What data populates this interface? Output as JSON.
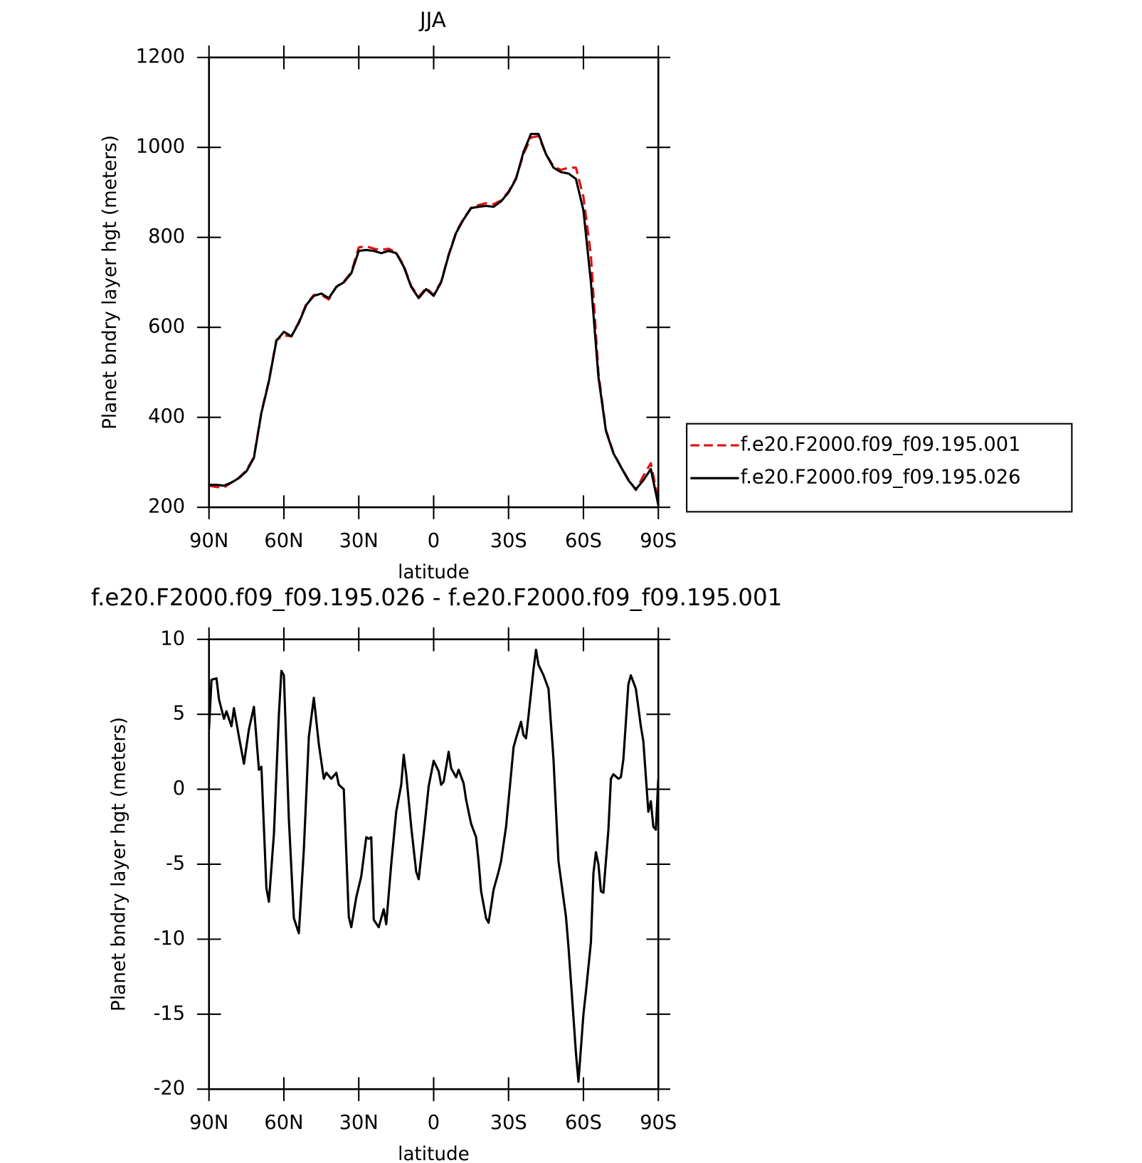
{
  "chart_data": [
    {
      "type": "line",
      "title": "JJA",
      "xlabel": "latitude",
      "ylabel": "Planet bndry layer hgt (meters)",
      "xlim": [
        90,
        -90
      ],
      "xticks": [
        {
          "value": 90,
          "label": "90N"
        },
        {
          "value": 60,
          "label": "60N"
        },
        {
          "value": 30,
          "label": "30N"
        },
        0,
        {
          "value": -30,
          "label": "30S"
        },
        {
          "value": -60,
          "label": "60S"
        },
        {
          "value": -90,
          "label": "90S"
        }
      ],
      "ylim": [
        200,
        1200
      ],
      "yticks": [
        200,
        400,
        600,
        800,
        1000,
        1200
      ],
      "legend": "right",
      "x": [
        90,
        87,
        84,
        81,
        78,
        75,
        72,
        69,
        66,
        63,
        60,
        57,
        54,
        51,
        48,
        45,
        42,
        39,
        36,
        33,
        30,
        27,
        24,
        21,
        18,
        15,
        12,
        9,
        6,
        3,
        0,
        -3,
        -6,
        -9,
        -12,
        -15,
        -18,
        -21,
        -24,
        -27,
        -30,
        -33,
        -36,
        -39,
        -42,
        -45,
        -48,
        -51,
        -54,
        -57,
        -60,
        -63,
        -66,
        -69,
        -72,
        -75,
        -78,
        -81,
        -84,
        -87,
        -90
      ],
      "series": [
        {
          "name": "f.e20.F2000.f09_f09.195.001",
          "color": "#e01010",
          "dashed": true,
          "values": [
            248,
            245,
            244,
            255,
            266,
            282,
            312,
            412,
            482,
            572,
            582,
            580,
            612,
            652,
            672,
            672,
            662,
            690,
            702,
            722,
            778,
            780,
            775,
            772,
            775,
            766,
            738,
            692,
            668,
            688,
            672,
            702,
            762,
            812,
            842,
            866,
            872,
            876,
            874,
            882,
            902,
            932,
            985,
            1022,
            1025,
            985,
            958,
            950,
            955,
            955,
            890,
            760,
            500,
            372,
            322,
            290,
            262,
            238,
            270,
            298,
            215
          ]
        },
        {
          "name": "f.e20.F2000.f09_f09.195.026",
          "color": "#000000",
          "dashed": false,
          "values": [
            250,
            250,
            248,
            255,
            265,
            280,
            310,
            410,
            480,
            570,
            590,
            580,
            610,
            650,
            670,
            675,
            665,
            690,
            700,
            720,
            770,
            772,
            770,
            765,
            770,
            765,
            735,
            690,
            665,
            685,
            670,
            700,
            760,
            810,
            840,
            865,
            868,
            870,
            868,
            880,
            900,
            930,
            990,
            1030,
            1030,
            985,
            955,
            945,
            942,
            930,
            860,
            700,
            490,
            370,
            320,
            290,
            260,
            240,
            260,
            285,
            205
          ]
        }
      ]
    },
    {
      "type": "line",
      "title": "f.e20.F2000.f09_f09.195.026 - f.e20.F2000.f09_f09.195.001",
      "xlabel": "latitude",
      "ylabel": "Planet bndry layer hgt (meters)",
      "xlim": [
        90,
        -90
      ],
      "xticks": [
        {
          "value": 90,
          "label": "90N"
        },
        {
          "value": 60,
          "label": "60N"
        },
        {
          "value": 30,
          "label": "30N"
        },
        0,
        {
          "value": -30,
          "label": "30S"
        },
        {
          "value": -60,
          "label": "60S"
        },
        {
          "value": -90,
          "label": "90S"
        }
      ],
      "ylim": [
        -20,
        10
      ],
      "yticks": [
        -20,
        -15,
        -10,
        -5,
        0,
        5,
        10
      ],
      "x": [
        90,
        89,
        87,
        86,
        84,
        83,
        81,
        80,
        78,
        76,
        74,
        72,
        70,
        69,
        67,
        66,
        64,
        62,
        61,
        60,
        58,
        56,
        54,
        52,
        50,
        48,
        46,
        44,
        43,
        41,
        39,
        38,
        36,
        34,
        33,
        31,
        29,
        27,
        26,
        25,
        24,
        22,
        20,
        19,
        17,
        15,
        13,
        12,
        11,
        9,
        7,
        6,
        4,
        2,
        0,
        -2,
        -3,
        -4,
        -6,
        -7,
        -9,
        -10,
        -12,
        -13,
        -15,
        -17,
        -18,
        -19,
        -21,
        -22,
        -24,
        -26,
        -27,
        -29,
        -31,
        -32,
        -33,
        -35,
        -36,
        -37,
        -38,
        -40,
        -41,
        -42,
        -44,
        -46,
        -48,
        -50,
        -53,
        -54,
        -56,
        -57,
        -58,
        -60,
        -61,
        -63,
        -64,
        -65,
        -66,
        -67,
        -68,
        -70,
        -71,
        -72,
        -74,
        -75,
        -76,
        -78,
        -79,
        -81,
        -83,
        -84,
        -86,
        -87,
        -88,
        -89,
        -90
      ],
      "series": [
        {
          "color": "#000000",
          "dashed": false,
          "values": [
            4,
            7.3,
            7.4,
            6,
            4.7,
            5.2,
            4.2,
            5.4,
            3.5,
            1.7,
            4,
            5.5,
            1.3,
            1.5,
            -6.6,
            -7.5,
            -3,
            5,
            7.9,
            7.6,
            -2,
            -8.6,
            -9.6,
            -4,
            3.5,
            6.1,
            3,
            0.7,
            1.1,
            0.7,
            1.1,
            0.3,
            0,
            -8.5,
            -9.2,
            -7.2,
            -5.8,
            -3.2,
            -3.3,
            -3.2,
            -8.7,
            -9.2,
            -8,
            -9,
            -5,
            -1.5,
            0.3,
            2.3,
            1,
            -2.5,
            -5.5,
            -6,
            -3,
            0.2,
            1.9,
            1.2,
            0.3,
            0.5,
            2.5,
            1.4,
            0.8,
            1.3,
            0.4,
            -0.7,
            -2.3,
            -3.2,
            -4.8,
            -6.8,
            -8.6,
            -8.9,
            -6.7,
            -5.5,
            -4.8,
            -2.5,
            1,
            2.8,
            3.4,
            4.5,
            3.6,
            3.4,
            4.9,
            8,
            9.3,
            8.3,
            7.6,
            6.7,
            2,
            -4.8,
            -8.5,
            -10.5,
            -15.2,
            -17.6,
            -19.5,
            -15,
            -13.5,
            -10.2,
            -5.6,
            -4.2,
            -5,
            -6.8,
            -6.9,
            -2.7,
            0.7,
            1,
            0.7,
            0.8,
            2,
            7,
            7.6,
            6.7,
            4.2,
            3.2,
            -1.5,
            -0.8,
            -2.5,
            -2.7,
            0.7
          ]
        }
      ]
    }
  ]
}
